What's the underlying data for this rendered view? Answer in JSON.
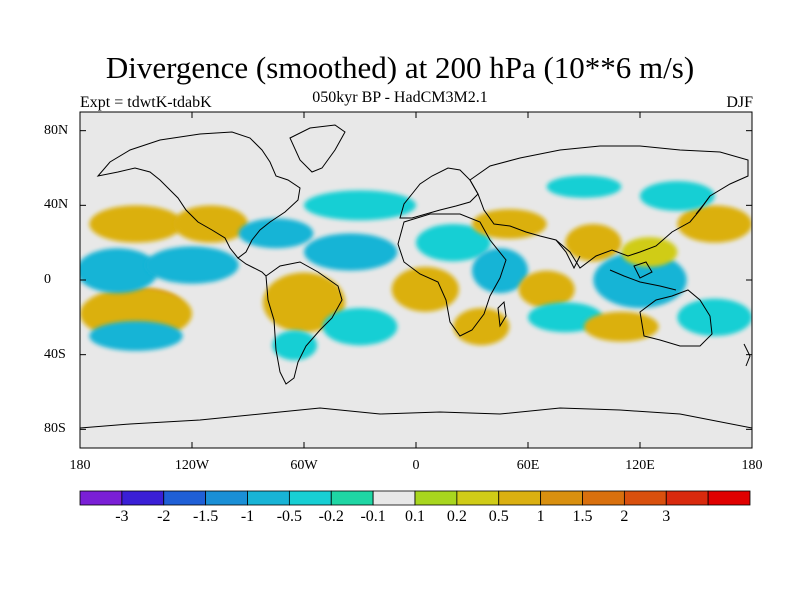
{
  "header": {
    "title": "Divergence (smoothed) at 200 hPa (10**6 m/s)",
    "subtitle": "050kyr BP - HadCM3M2.1",
    "experiment": "Expt = tdwtK-tdabK",
    "season": "DJF"
  },
  "map": {
    "projection": "cylindrical equidistant",
    "lon_range": [
      -180,
      180
    ],
    "lat_range": [
      -90,
      90
    ],
    "lat_ticks": [
      {
        "value": 80,
        "label": "80N"
      },
      {
        "value": 40,
        "label": "40N"
      },
      {
        "value": 0,
        "label": "0"
      },
      {
        "value": -40,
        "label": "40S"
      },
      {
        "value": -80,
        "label": "80S"
      }
    ],
    "lon_ticks": [
      {
        "value": -180,
        "label": "180"
      },
      {
        "value": -120,
        "label": "120W"
      },
      {
        "value": -60,
        "label": "60W"
      },
      {
        "value": 0,
        "label": "0"
      },
      {
        "value": 60,
        "label": "60E"
      },
      {
        "value": 120,
        "label": "120E"
      },
      {
        "value": 180,
        "label": "180"
      }
    ],
    "background_color": "#e8e8e8",
    "coastline_color": "#000000"
  },
  "colorbar": {
    "colors": [
      "#7a1fd6",
      "#3a1fd6",
      "#1f5fd6",
      "#1a8fd6",
      "#18b4d6",
      "#17cfd4",
      "#1fd6a4",
      "#e8e8e8",
      "#a8d61e",
      "#d0cc17",
      "#dbb011",
      "#d9900f",
      "#d9700e",
      "#d9500e",
      "#d92a0e",
      "#e00000"
    ],
    "labels": [
      "-3",
      "-2",
      "-1.5",
      "-1",
      "-0.5",
      "-0.2",
      "-0.1",
      "0.1",
      "0.2",
      "0.5",
      "1",
      "1.5",
      "2",
      "3"
    ]
  },
  "chart_data": {
    "type": "heatmap",
    "variable": "Divergence (smoothed) at 200 hPa",
    "units": "10**6 m/s",
    "levels": [
      -3,
      -2,
      -1.5,
      -1,
      -0.5,
      -0.2,
      -0.1,
      0.1,
      0.2,
      0.5,
      1,
      1.5,
      2,
      3
    ],
    "anomaly_regions": [
      {
        "lon": -145,
        "lat": -15,
        "rx": 20,
        "ry": 10,
        "value": 1.5
      },
      {
        "lon": -150,
        "lat": -18,
        "rx": 30,
        "ry": 14,
        "value": 0.7
      },
      {
        "lon": -150,
        "lat": -30,
        "rx": 25,
        "ry": 8,
        "value": -0.6
      },
      {
        "lon": -160,
        "lat": 5,
        "rx": 22,
        "ry": 12,
        "value": -0.6
      },
      {
        "lon": -120,
        "lat": 8,
        "rx": 25,
        "ry": 10,
        "value": -0.7
      },
      {
        "lon": -150,
        "lat": 30,
        "rx": 25,
        "ry": 10,
        "value": 0.6
      },
      {
        "lon": -110,
        "lat": 30,
        "rx": 20,
        "ry": 10,
        "value": 0.5
      },
      {
        "lon": -75,
        "lat": 25,
        "rx": 20,
        "ry": 8,
        "value": -0.6
      },
      {
        "lon": -60,
        "lat": -12,
        "rx": 22,
        "ry": 16,
        "value": 0.8
      },
      {
        "lon": -65,
        "lat": -35,
        "rx": 12,
        "ry": 8,
        "value": -0.5
      },
      {
        "lon": -35,
        "lat": 15,
        "rx": 25,
        "ry": 10,
        "value": -0.6
      },
      {
        "lon": -30,
        "lat": -25,
        "rx": 20,
        "ry": 10,
        "value": -0.5
      },
      {
        "lon": -30,
        "lat": 40,
        "rx": 30,
        "ry": 8,
        "value": -0.4
      },
      {
        "lon": 5,
        "lat": -5,
        "rx": 18,
        "ry": 12,
        "value": 0.8
      },
      {
        "lon": 20,
        "lat": 20,
        "rx": 20,
        "ry": 10,
        "value": -0.5
      },
      {
        "lon": 35,
        "lat": -25,
        "rx": 15,
        "ry": 10,
        "value": 0.9
      },
      {
        "lon": 45,
        "lat": 5,
        "rx": 15,
        "ry": 12,
        "value": -0.6
      },
      {
        "lon": 50,
        "lat": 30,
        "rx": 20,
        "ry": 8,
        "value": 0.5
      },
      {
        "lon": 70,
        "lat": -5,
        "rx": 15,
        "ry": 10,
        "value": 0.6
      },
      {
        "lon": 80,
        "lat": -20,
        "rx": 20,
        "ry": 8,
        "value": -0.5
      },
      {
        "lon": 95,
        "lat": 20,
        "rx": 15,
        "ry": 10,
        "value": 0.5
      },
      {
        "lon": 120,
        "lat": 0,
        "rx": 25,
        "ry": 15,
        "value": -0.6
      },
      {
        "lon": 125,
        "lat": 15,
        "rx": 15,
        "ry": 8,
        "value": 0.4
      },
      {
        "lon": 110,
        "lat": -25,
        "rx": 20,
        "ry": 8,
        "value": 0.5
      },
      {
        "lon": 160,
        "lat": -20,
        "rx": 20,
        "ry": 10,
        "value": -0.5
      },
      {
        "lon": 160,
        "lat": 30,
        "rx": 20,
        "ry": 10,
        "value": 0.5
      },
      {
        "lon": 140,
        "lat": 45,
        "rx": 20,
        "ry": 8,
        "value": -0.4
      },
      {
        "lon": 90,
        "lat": 50,
        "rx": 20,
        "ry": 6,
        "value": -0.3
      }
    ]
  }
}
